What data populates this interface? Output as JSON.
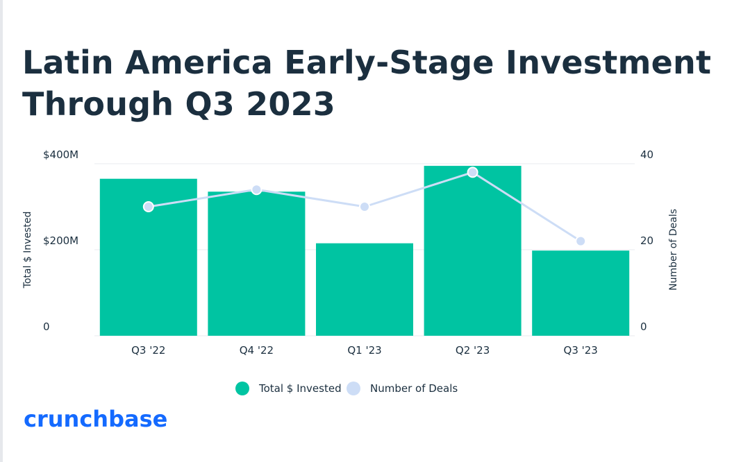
{
  "title_lines": [
    "Latin America Early-Stage Investment",
    "Through Q3 2023"
  ],
  "logo_text": "crunchbase",
  "colors": {
    "title": "#1b2f3f",
    "bar": "#00c4a2",
    "line": "#cdddf6",
    "grid": "#e8ebef",
    "logo": "#146aff"
  },
  "chart_data": {
    "type": "bar",
    "categories": [
      "Q3 '22",
      "Q4 '22",
      "Q1 '23",
      "Q2 '23",
      "Q3 '23"
    ],
    "series": [
      {
        "name": "Total $ Invested",
        "type": "bar",
        "axis": "left",
        "values": [
          365,
          335,
          215,
          395,
          198
        ]
      },
      {
        "name": "Number of Deals",
        "type": "line",
        "axis": "right",
        "values": [
          30,
          34,
          30,
          38,
          22
        ]
      }
    ],
    "ylabel_left": "Total $ Invested",
    "ylabel_right": "Number of Deals",
    "ylim_left": [
      0,
      400
    ],
    "ylim_right": [
      0,
      40
    ],
    "yticks_left": [
      "0",
      "$200M",
      "$400M"
    ],
    "yticks_right": [
      "0",
      "20",
      "40"
    ],
    "grid": true,
    "legend_position": "bottom"
  }
}
